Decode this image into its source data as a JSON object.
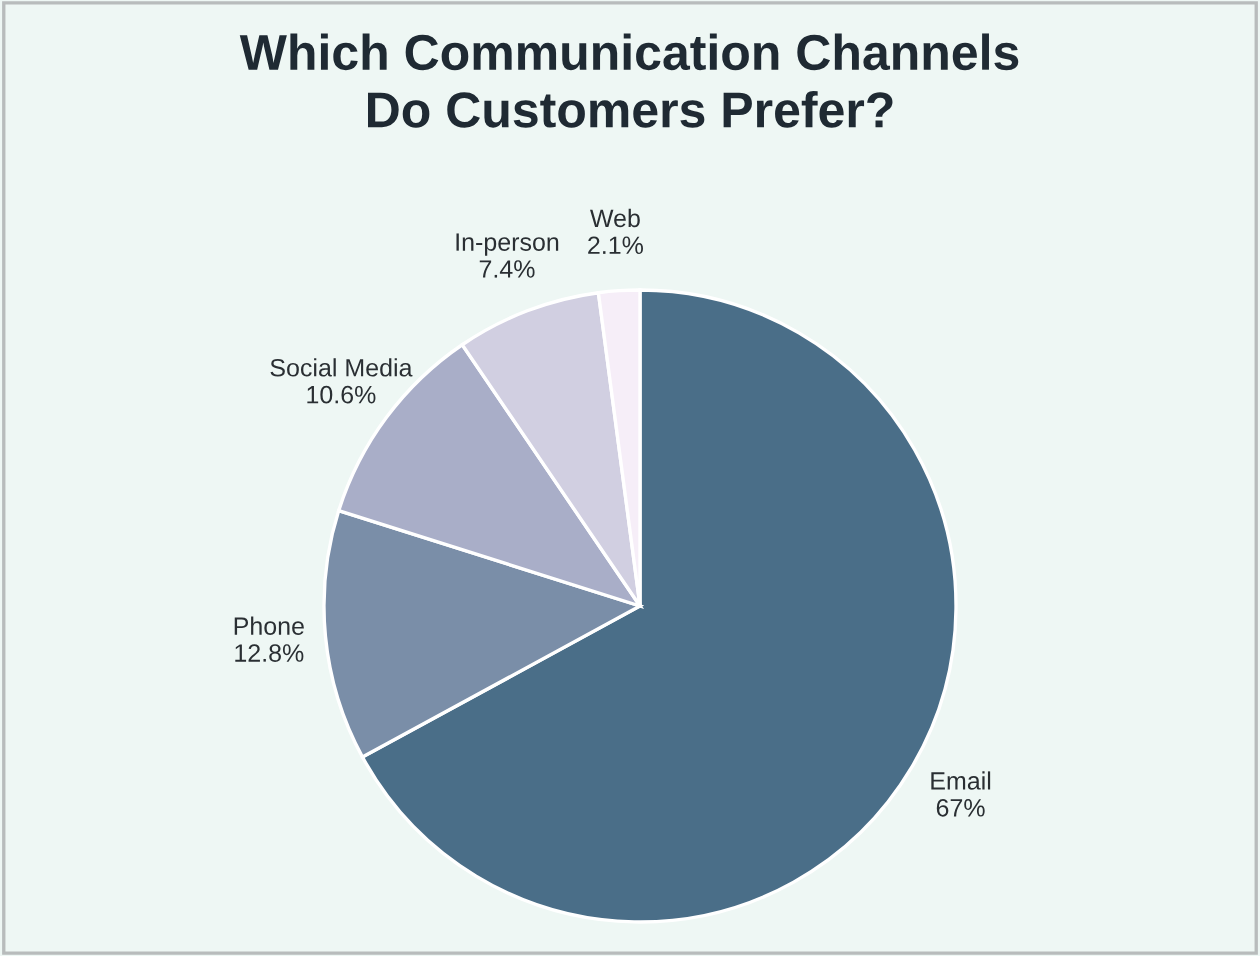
{
  "chart_data": {
    "type": "pie",
    "title": "Which Communication Channels\nDo Customers Prefer?",
    "categories": [
      "Email",
      "Phone",
      "Social Media",
      "In-person",
      "Web"
    ],
    "values": [
      67,
      12.8,
      10.6,
      7.4,
      2.1
    ],
    "value_labels": [
      "67%",
      "12.8%",
      "10.6%",
      "7.4%",
      "2.1%"
    ],
    "colors": [
      "#4a6e88",
      "#7a8ea8",
      "#a9aec8",
      "#d1cfe1",
      "#f6eef8"
    ],
    "legend": false
  }
}
